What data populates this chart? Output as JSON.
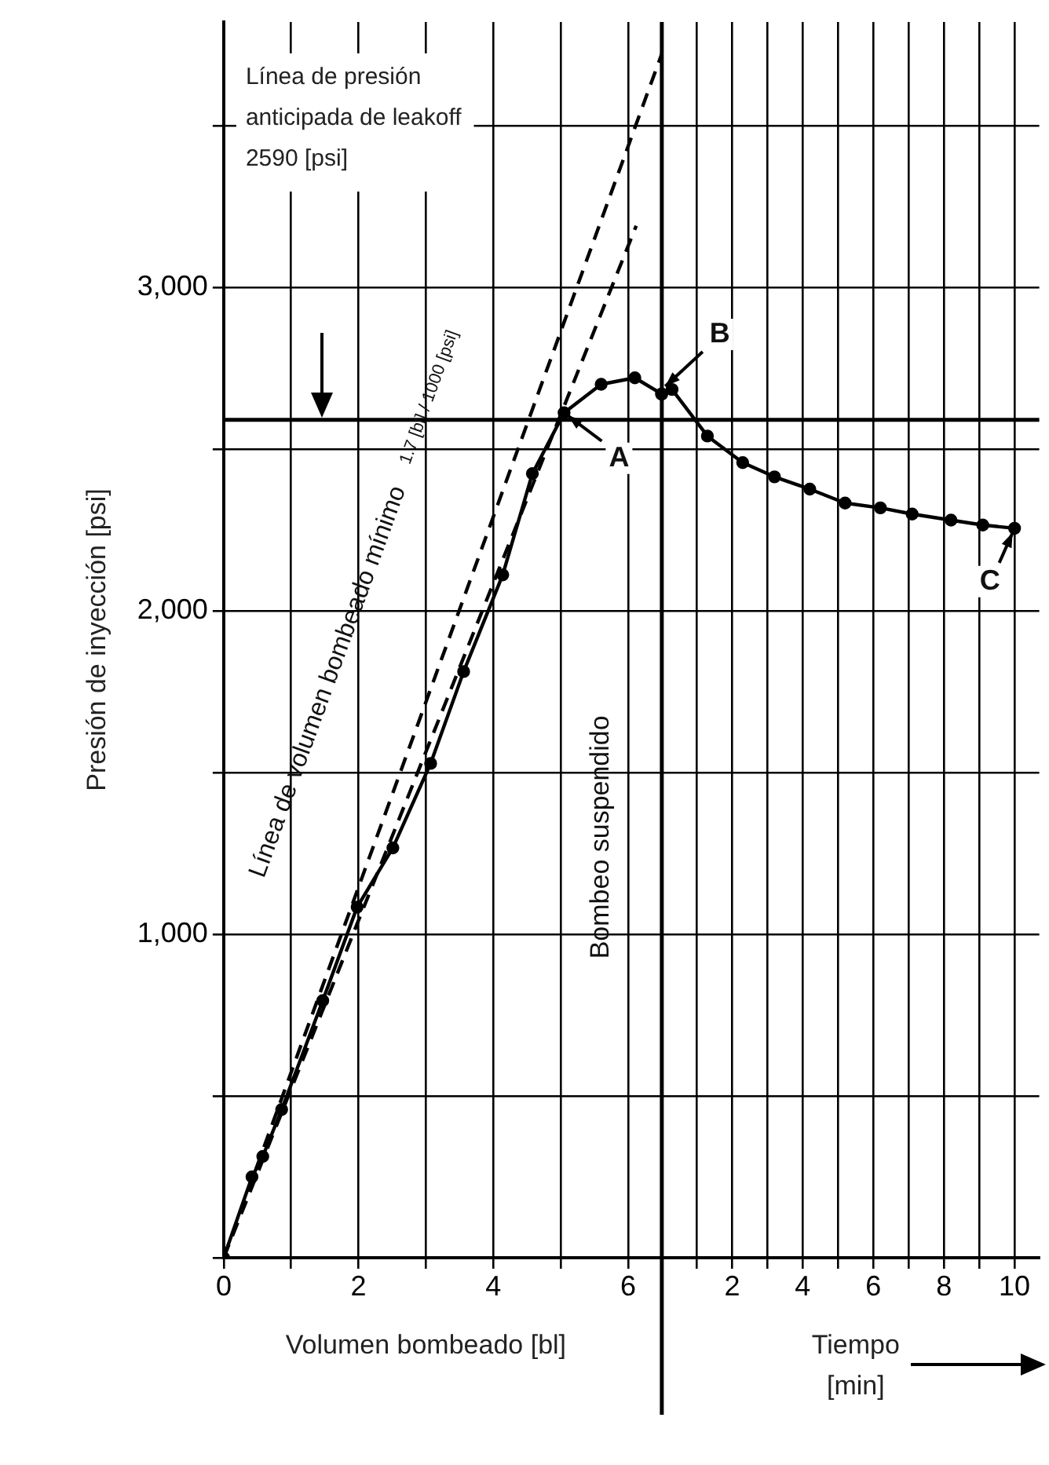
{
  "chart_data": {
    "type": "line",
    "ylabel": "Presión de inyección [psi]",
    "xlabel": "Volumen bombeado [bl]",
    "x2label": "Tiempo [min]",
    "xlim": [
      0,
      12.1
    ],
    "xticks": [
      0,
      {
        "value": 1,
        "label": null
      },
      2,
      {
        "value": 3,
        "label": null
      },
      4,
      {
        "value": 5,
        "label": null
      },
      6
    ],
    "x2lim": [
      -12.4,
      10.7
    ],
    "x2ticks": [
      {
        "value": 1,
        "label": null
      },
      2,
      {
        "value": 3,
        "label": null
      },
      4,
      {
        "value": 5,
        "label": null
      },
      6,
      {
        "value": 7,
        "label": null
      },
      8,
      {
        "value": 9,
        "label": null
      },
      10
    ],
    "ylim": [
      0,
      3820
    ],
    "yticks": [
      {
        "value": 0,
        "label": null
      },
      {
        "value": 500,
        "label": null
      },
      {
        "value": 1000,
        "label": "1,000"
      },
      {
        "value": 1500,
        "label": null
      },
      {
        "value": 2000,
        "label": "2,000"
      },
      {
        "value": 2500,
        "label": null
      },
      {
        "value": 3000,
        "label": "3,000"
      },
      {
        "value": 3500,
        "label": null
      }
    ],
    "grid": true,
    "legend": false,
    "series": [
      {
        "color": "#000000",
        "marker": "circle",
        "line_style": "solid",
        "x": [
          0,
          0.42,
          0.58,
          0.86,
          1.47,
          1.98,
          2.51,
          3.07,
          3.56,
          4.14,
          4.58,
          5.05,
          5.6,
          6.1,
          6.5
        ],
        "values": [
          0,
          250,
          313,
          458,
          795,
          1084,
          1267,
          1528,
          1812,
          2111,
          2424,
          2612,
          2700,
          2720,
          2670
        ]
      },
      {
        "color": "#000000",
        "marker": "none",
        "line_style": "dashed",
        "x": [
          0,
          6.5
        ],
        "values": [
          0,
          3722
        ]
      },
      {
        "color": "#000000",
        "marker": "none",
        "line_style": "dashed",
        "x": [
          0,
          6.12
        ],
        "values": [
          0,
          3190
        ]
      },
      {
        "color": "#000000",
        "marker": "circle",
        "line_style": "solid",
        "axis": "x2",
        "x": [
          0,
          0.3,
          1.3,
          2.3,
          3.2,
          4.2,
          5.2,
          6.2,
          7.1,
          8.2,
          9.1,
          10.0
        ],
        "values": [
          2670,
          2684,
          2540,
          2458,
          2414,
          2376,
          2333,
          2318,
          2299,
          2280,
          2265,
          2255
        ]
      }
    ],
    "ref_lines": [
      {
        "axis": "y",
        "value": 2590,
        "label": "Línea de presión anticipada de leakoff 2590 [psi]",
        "color": "#000000"
      },
      {
        "axis": "x",
        "value": 6.5,
        "color": "#000000"
      }
    ],
    "annotations": [
      "Línea de volumen bombeado mínimo",
      "1.7 [bl] / 1000 [psi]",
      "Bombeo suspendido",
      "C",
      {
        "text": "A",
        "x": 5.05,
        "y": 2612
      },
      {
        "text": "B",
        "x": 6.5,
        "y": 2684
      }
    ]
  }
}
